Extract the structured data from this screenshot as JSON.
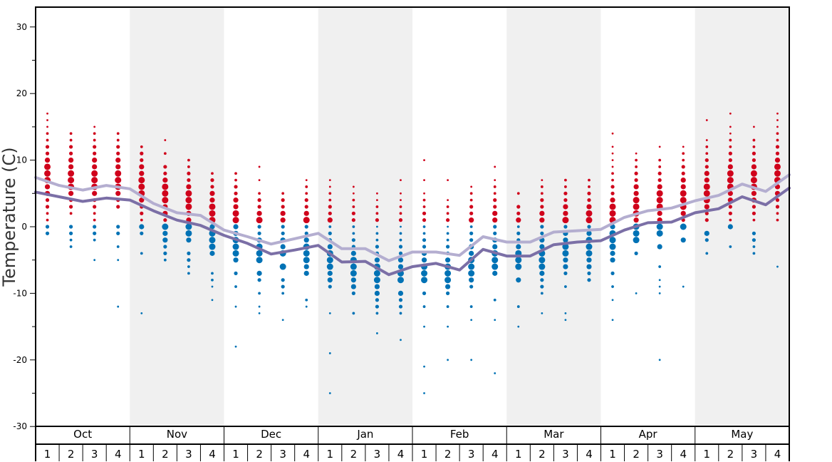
{
  "chart_data": {
    "type": "scatter",
    "ylabel": "Temperature (C)",
    "ylim": [
      -30,
      33
    ],
    "y_ticks": [
      "30",
      "20",
      "10",
      "0",
      "-10",
      "-20",
      "-30"
    ],
    "months": [
      "Oct",
      "Nov",
      "Dec",
      "Jan",
      "Feb",
      "Mar",
      "Apr",
      "May"
    ],
    "weeks": [
      "1",
      "2",
      "3",
      "4"
    ],
    "colors": {
      "warm_dots": "#d0021b",
      "cold_dots": "#0072b5",
      "line_dark": "#7b6fa6",
      "line_light": "#b4aed0",
      "band_shade": "#f0f0f0"
    },
    "series": [
      {
        "values": [
          5.2,
          4.5,
          3.8,
          4.3,
          4.0,
          2.4,
          1.0,
          0.2,
          -1.3,
          -2.5,
          -4.1,
          -3.5,
          -2.8,
          -5.3,
          -5.2,
          -7.2,
          -6.0,
          -5.5,
          -6.5,
          -3.4,
          -4.4,
          -4.4,
          -2.7,
          -2.3,
          -2.1,
          -0.5,
          0.6,
          0.7,
          2.1,
          2.7,
          4.5,
          3.3,
          5.8
        ]
      },
      {
        "values": [
          7.4,
          6.2,
          5.5,
          6.2,
          5.7,
          3.5,
          2.1,
          1.7,
          -0.5,
          -1.5,
          -2.6,
          -1.8,
          -1.0,
          -3.3,
          -3.3,
          -5.1,
          -3.8,
          -3.8,
          -4.3,
          -1.5,
          -2.3,
          -2.3,
          -0.8,
          -0.6,
          -0.4,
          1.4,
          2.4,
          2.8,
          3.9,
          4.7,
          6.4,
          5.3,
          7.8
        ]
      }
    ],
    "observations": [
      {
        "x": 0,
        "warm": [
          1,
          2,
          3,
          4,
          5,
          6,
          7,
          8,
          9,
          10,
          11,
          12,
          13,
          14,
          15,
          16,
          17
        ],
        "cold": [
          0,
          -1
        ]
      },
      {
        "x": 1,
        "warm": [
          2,
          3,
          4,
          5,
          6,
          7,
          8,
          9,
          10,
          11,
          12,
          13,
          14
        ],
        "cold": [
          0,
          -1,
          -2,
          -3
        ]
      },
      {
        "x": 2,
        "warm": [
          1,
          2,
          3,
          4,
          5,
          6,
          7,
          8,
          9,
          10,
          11,
          12,
          13,
          14,
          15
        ],
        "cold": [
          0,
          -1,
          -2,
          -5
        ]
      },
      {
        "x": 3,
        "warm": [
          3,
          4,
          5,
          6,
          7,
          8,
          9,
          10,
          11,
          12,
          13,
          14
        ],
        "cold": [
          0,
          -1,
          -3,
          -5,
          -12
        ]
      },
      {
        "x": 4,
        "warm": [
          1,
          2,
          3,
          4,
          5,
          6,
          7,
          8,
          9,
          10,
          11,
          12
        ],
        "cold": [
          0,
          -1,
          -4,
          -13
        ]
      },
      {
        "x": 5,
        "warm": [
          1,
          2,
          3,
          4,
          5,
          6,
          7,
          8,
          9,
          11,
          13
        ],
        "cold": [
          0,
          -1,
          -2,
          -3,
          -4,
          -5
        ]
      },
      {
        "x": 6,
        "warm": [
          1,
          2,
          3,
          4,
          5,
          6,
          7,
          8,
          9,
          10
        ],
        "cold": [
          0,
          -1,
          -2,
          -4,
          -5,
          -6,
          -7
        ]
      },
      {
        "x": 7,
        "warm": [
          1,
          2,
          3,
          4,
          5,
          6,
          7,
          8
        ],
        "cold": [
          0,
          -1,
          -2,
          -3,
          -4,
          -7,
          -8,
          -9,
          -11
        ]
      },
      {
        "x": 8,
        "warm": [
          1,
          2,
          3,
          4,
          5,
          6,
          7,
          8
        ],
        "cold": [
          0,
          -1,
          -2,
          -3,
          -4,
          -5,
          -7,
          -9,
          -12,
          -18
        ]
      },
      {
        "x": 9,
        "warm": [
          1,
          2,
          3,
          4,
          5,
          7,
          9
        ],
        "cold": [
          0,
          -1,
          -2,
          -3,
          -4,
          -5,
          -7,
          -8,
          -10,
          -12,
          -13
        ]
      },
      {
        "x": 10,
        "warm": [
          1,
          2,
          3,
          4,
          5
        ],
        "cold": [
          0,
          -1,
          -2,
          -3,
          -4,
          -6,
          -8,
          -9,
          -10,
          -14
        ]
      },
      {
        "x": 11,
        "warm": [
          1,
          2,
          3,
          4,
          5,
          6,
          7
        ],
        "cold": [
          0,
          -1,
          -2,
          -3,
          -4,
          -5,
          -6,
          -7,
          -11,
          -12
        ]
      },
      {
        "x": 12,
        "warm": [
          1,
          2,
          3,
          4,
          5,
          6,
          7
        ],
        "cold": [
          0,
          -1,
          -2,
          -3,
          -4,
          -5,
          -6,
          -7,
          -8,
          -9,
          -13,
          -19,
          -25
        ]
      },
      {
        "x": 13,
        "warm": [
          1,
          2,
          3,
          4,
          5,
          6
        ],
        "cold": [
          0,
          -1,
          -2,
          -3,
          -4,
          -5,
          -6,
          -7,
          -8,
          -9,
          -10,
          -13
        ]
      },
      {
        "x": 14,
        "warm": [
          1,
          2,
          3,
          4,
          5
        ],
        "cold": [
          0,
          -1,
          -2,
          -3,
          -4,
          -5,
          -6,
          -7,
          -8,
          -9,
          -10,
          -11,
          -12,
          -13,
          -16
        ]
      },
      {
        "x": 15,
        "warm": [
          1,
          2,
          3,
          4,
          5,
          7
        ],
        "cold": [
          0,
          -1,
          -2,
          -3,
          -4,
          -5,
          -6,
          -7,
          -8,
          -10,
          -11,
          -12,
          -13,
          -17
        ]
      },
      {
        "x": 16,
        "warm": [
          1,
          2,
          3,
          4,
          5,
          7,
          10
        ],
        "cold": [
          0,
          -1,
          -2,
          -3,
          -4,
          -5,
          -6,
          -7,
          -8,
          -10,
          -12,
          -15,
          -21,
          -25
        ]
      },
      {
        "x": 17,
        "warm": [
          1,
          2,
          3,
          4,
          7
        ],
        "cold": [
          0,
          -1,
          -2,
          -3,
          -4,
          -5,
          -6,
          -7,
          -8,
          -9,
          -10,
          -12,
          -15,
          -20
        ]
      },
      {
        "x": 18,
        "warm": [
          1,
          2,
          3,
          4,
          5,
          6
        ],
        "cold": [
          0,
          -1,
          -2,
          -3,
          -4,
          -5,
          -6,
          -7,
          -8,
          -9,
          -12,
          -14,
          -20
        ]
      },
      {
        "x": 19,
        "warm": [
          1,
          2,
          3,
          4,
          5,
          6,
          7,
          9
        ],
        "cold": [
          0,
          -1,
          -2,
          -3,
          -4,
          -5,
          -6,
          -7,
          -11,
          -14,
          -22
        ]
      },
      {
        "x": 20,
        "warm": [
          1,
          2,
          3,
          5
        ],
        "cold": [
          0,
          -1,
          -2,
          -3,
          -4,
          -5,
          -6,
          -8,
          -12,
          -15
        ]
      },
      {
        "x": 21,
        "warm": [
          1,
          2,
          3,
          4,
          5,
          6,
          7
        ],
        "cold": [
          0,
          -1,
          -2,
          -3,
          -4,
          -5,
          -6,
          -7,
          -8,
          -9,
          -10,
          -13
        ]
      },
      {
        "x": 22,
        "warm": [
          1,
          2,
          3,
          4,
          5,
          6,
          7
        ],
        "cold": [
          0,
          -1,
          -2,
          -3,
          -4,
          -5,
          -6,
          -7,
          -9,
          -13,
          -14
        ]
      },
      {
        "x": 23,
        "warm": [
          1,
          2,
          3,
          4,
          5,
          6,
          7
        ],
        "cold": [
          0,
          -1,
          -2,
          -3,
          -4,
          -5,
          -6,
          -7,
          -8
        ]
      },
      {
        "x": 24,
        "warm": [
          1,
          2,
          3,
          4,
          5,
          6,
          7,
          8,
          9,
          10,
          11,
          12,
          14
        ],
        "cold": [
          0,
          -1,
          -2,
          -3,
          -4,
          -5,
          -7,
          -9,
          -11,
          -14
        ]
      },
      {
        "x": 25,
        "warm": [
          1,
          2,
          3,
          4,
          5,
          6,
          7,
          8,
          9,
          10,
          11
        ],
        "cold": [
          0,
          -1,
          -2,
          -4,
          -10
        ]
      },
      {
        "x": 26,
        "warm": [
          1,
          2,
          3,
          4,
          5,
          6,
          7,
          8,
          9,
          10,
          12
        ],
        "cold": [
          0,
          -1,
          -3,
          -6,
          -8,
          -9,
          -10,
          -20
        ]
      },
      {
        "x": 27,
        "warm": [
          1,
          2,
          3,
          4,
          5,
          6,
          7,
          8,
          9,
          10,
          11,
          12
        ],
        "cold": [
          0,
          -2,
          -9
        ]
      },
      {
        "x": 28,
        "warm": [
          1,
          2,
          3,
          4,
          5,
          6,
          7,
          8,
          9,
          10,
          11,
          12,
          13,
          16
        ],
        "cold": [
          -1,
          -2,
          -4
        ]
      },
      {
        "x": 29,
        "warm": [
          1,
          2,
          3,
          4,
          5,
          6,
          7,
          8,
          9,
          10,
          11,
          12,
          13,
          14,
          15,
          17
        ],
        "cold": [
          0,
          -3
        ]
      },
      {
        "x": 30,
        "warm": [
          1,
          2,
          3,
          4,
          5,
          6,
          7,
          8,
          9,
          10,
          11,
          12,
          13,
          15
        ],
        "cold": [
          -1,
          -2,
          -3,
          -4
        ]
      },
      {
        "x": 31,
        "warm": [
          1,
          2,
          3,
          4,
          5,
          6,
          7,
          8,
          9,
          10,
          11,
          12,
          13,
          14,
          15,
          16,
          17
        ],
        "cold": [
          -6
        ]
      }
    ]
  }
}
